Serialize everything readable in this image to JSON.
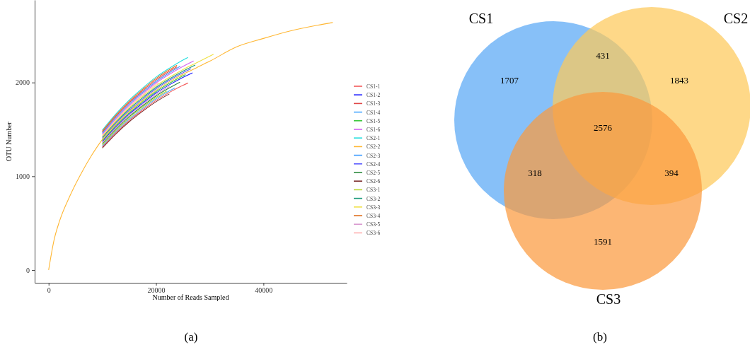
{
  "chart_data": [
    {
      "type": "line",
      "xlabel": "Number of Reads Sampled",
      "ylabel": "OTU Number",
      "xlim": [
        -2600,
        55500
      ],
      "ylim": [
        -136,
        2880
      ],
      "xticks": [
        0,
        20000,
        40000
      ],
      "yticks": [
        0,
        1000,
        2000
      ],
      "grid": false,
      "legend": "right",
      "annotations": [
        "(a)"
      ],
      "series": [
        {
          "name": "CS1-1",
          "color": "#f35b5b",
          "x": [
            10000,
            12500,
            15000,
            17500,
            20000,
            22500,
            25000,
            25950
          ],
          "values": [
            1313,
            1463,
            1595,
            1707,
            1810,
            1895,
            1970,
            1995
          ]
        },
        {
          "name": "CS1-2",
          "color": "#1a1aff",
          "x": [
            10000,
            12500,
            15000,
            17500,
            20000,
            22500,
            25000,
            26800
          ],
          "values": [
            1369,
            1526,
            1663,
            1780,
            1888,
            1976,
            2054,
            2103
          ]
        },
        {
          "name": "CS1-3",
          "color": "#e04848",
          "x": [
            10000,
            12500,
            15000,
            17500,
            20000,
            22500,
            23900
          ],
          "values": [
            1470,
            1638,
            1785,
            1911,
            2027,
            2121,
            2168
          ]
        },
        {
          "name": "CS1-4",
          "color": "#4aa8ff",
          "x": [
            10000,
            12500,
            15000,
            17500,
            20000,
            22500,
            23500
          ],
          "values": [
            1324,
            1476,
            1608,
            1722,
            1826,
            1911,
            1941
          ]
        },
        {
          "name": "CS1-5",
          "color": "#3cc83c",
          "x": [
            10000,
            12500,
            15000,
            17500,
            20000,
            22500,
            25000,
            25500
          ],
          "values": [
            1380,
            1538,
            1676,
            1795,
            1903,
            1992,
            2071,
            2085
          ]
        },
        {
          "name": "CS1-6",
          "color": "#d45ff0",
          "x": [
            10000,
            12500,
            15000,
            17500,
            20000,
            22500,
            25000,
            27000
          ],
          "values": [
            1448,
            1613,
            1758,
            1882,
            1996,
            2089,
            2171,
            2229
          ]
        },
        {
          "name": "CS2-1",
          "color": "#22dede",
          "x": [
            10000,
            12500,
            15000,
            17500,
            20000,
            22500,
            25000,
            25950
          ],
          "values": [
            1492,
            1663,
            1812,
            1940,
            2057,
            2153,
            2239,
            2267
          ]
        },
        {
          "name": "CS2-2",
          "color": "#ffb733",
          "x": [
            0,
            1000,
            2000,
            4000,
            6000,
            8000,
            10000,
            12500,
            15000,
            17500,
            20000,
            22500,
            25000,
            27500,
            30000,
            35000,
            40000,
            45000,
            50000,
            52900
          ],
          "values": [
            0,
            318,
            517,
            795,
            1024,
            1223,
            1392,
            1551,
            1690,
            1809,
            1918,
            2008,
            2087,
            2157,
            2227,
            2380,
            2470,
            2550,
            2610,
            2640
          ]
        },
        {
          "name": "CS2-3",
          "color": "#3d9bff",
          "x": [
            10000,
            12500,
            15000,
            17500,
            20000,
            22500,
            24500
          ],
          "values": [
            1459,
            1626,
            1771,
            1896,
            2011,
            2105,
            2173
          ]
        },
        {
          "name": "CS2-4",
          "color": "#5b5bff",
          "x": [
            10000,
            12500,
            15000,
            17500,
            20000,
            22500,
            25000,
            26500
          ],
          "values": [
            1403,
            1563,
            1703,
            1824,
            1934,
            2024,
            2104,
            2146
          ]
        },
        {
          "name": "CS2-5",
          "color": "#2e8b3e",
          "x": [
            10000,
            12500,
            15000,
            17500,
            20000,
            22500,
            24450
          ],
          "values": [
            1347,
            1501,
            1635,
            1751,
            1857,
            1943,
            2004
          ]
        },
        {
          "name": "CS2-6",
          "color": "#7b2b2b",
          "x": [
            10000,
            12500,
            15000,
            17500,
            20000,
            22470
          ],
          "values": [
            1302,
            1451,
            1581,
            1693,
            1795,
            1878
          ]
        },
        {
          "name": "CS3-1",
          "color": "#b8d433",
          "x": [
            10000,
            12500,
            15000,
            17500,
            20000,
            22000
          ],
          "values": [
            1336,
            1488,
            1622,
            1736,
            1841,
            1910
          ]
        },
        {
          "name": "CS3-2",
          "color": "#1a9a7a",
          "x": [
            10000,
            12500,
            15000,
            17500,
            20000,
            22500,
            25000,
            27300
          ],
          "values": [
            1414,
            1576,
            1717,
            1838,
            1949,
            2040,
            2121,
            2187
          ]
        },
        {
          "name": "CS3-3",
          "color": "#f0e040",
          "x": [
            10000,
            12500,
            15000,
            17500,
            20000,
            22500,
            25000,
            27500,
            30700
          ],
          "values": [
            1425,
            1588,
            1731,
            1853,
            1965,
            2056,
            2138,
            2209,
            2301
          ]
        },
        {
          "name": "CS3-4",
          "color": "#e07020",
          "x": [
            10000,
            12500,
            15000,
            17500,
            20000,
            22500,
            23900
          ],
          "values": [
            1481,
            1650,
            1799,
            1926,
            2042,
            2137,
            2185
          ]
        },
        {
          "name": "CS3-5",
          "color": "#d99ad0",
          "x": [
            10000,
            12500,
            15000,
            17500,
            20000,
            22500
          ],
          "values": [
            1358,
            1513,
            1649,
            1765,
            1872,
            1959
          ]
        },
        {
          "name": "CS3-6",
          "color": "#ffb0b0",
          "x": [
            10000,
            12500,
            15000,
            17500,
            20000,
            20500
          ],
          "values": [
            1436,
            1601,
            1744,
            1867,
            1980,
            1999
          ]
        }
      ]
    },
    {
      "type": "other",
      "categories": [
        "CS1",
        "CS2",
        "CS3"
      ],
      "colors": [
        "#59a8f5",
        "#fdc95a",
        "#fb9a3e"
      ],
      "annotations": [
        "1707",
        "1843",
        "1591",
        "431",
        "318",
        "394",
        "2576",
        "(b)"
      ]
    }
  ]
}
